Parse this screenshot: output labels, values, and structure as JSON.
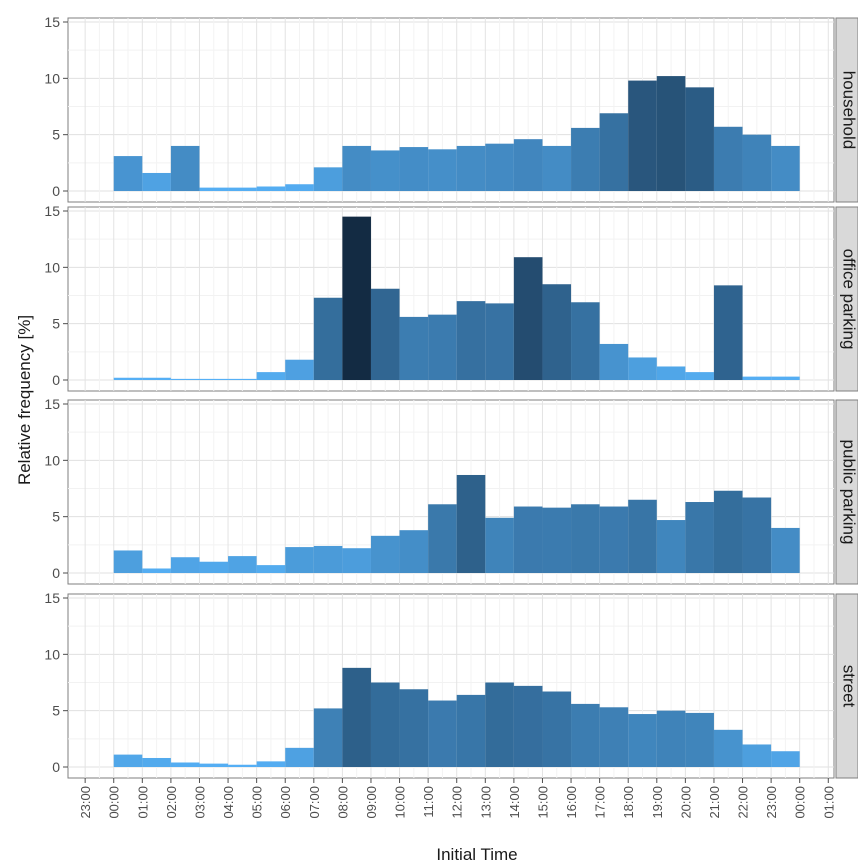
{
  "chart_data": {
    "type": "bar",
    "xlabel": "Initial Time",
    "ylabel": "Relative frequency [%]",
    "ylim": [
      0,
      15
    ],
    "yticks": [
      0,
      5,
      10,
      15
    ],
    "xticks": [
      "23:00",
      "00:00",
      "01:00",
      "02:00",
      "03:00",
      "04:00",
      "05:00",
      "06:00",
      "07:00",
      "08:00",
      "09:00",
      "10:00",
      "11:00",
      "12:00",
      "13:00",
      "14:00",
      "15:00",
      "16:00",
      "17:00",
      "18:00",
      "19:00",
      "20:00",
      "21:00",
      "22:00",
      "23:00",
      "00:00",
      "01:00"
    ],
    "bin_start_hours": [
      0,
      1,
      2,
      3,
      4,
      5,
      6,
      7,
      8,
      9,
      10,
      11,
      12,
      13,
      14,
      15,
      16,
      17,
      18,
      19,
      20,
      21,
      22,
      23
    ],
    "color_low": "#56b1f7",
    "color_high": "#132b43",
    "grid": true,
    "panels": [
      {
        "name": "household",
        "values": [
          3.1,
          1.6,
          4.0,
          0.3,
          0.3,
          0.4,
          0.6,
          2.1,
          4.0,
          3.6,
          3.9,
          3.7,
          4.0,
          4.2,
          4.6,
          4.0,
          5.6,
          6.9,
          9.8,
          10.2,
          9.2,
          5.7,
          5.0,
          4.0
        ]
      },
      {
        "name": "office parking",
        "values": [
          0.2,
          0.2,
          0.1,
          0.1,
          0.1,
          0.7,
          1.8,
          7.3,
          14.5,
          8.1,
          5.6,
          5.8,
          7.0,
          6.8,
          10.9,
          8.5,
          6.9,
          3.2,
          2.0,
          1.2,
          0.7,
          8.4,
          0.3,
          0.3
        ]
      },
      {
        "name": "public parking",
        "values": [
          2.0,
          0.4,
          1.4,
          1.0,
          1.5,
          0.7,
          2.3,
          2.4,
          2.2,
          3.3,
          3.8,
          6.1,
          8.7,
          4.9,
          5.9,
          5.8,
          6.1,
          5.9,
          6.5,
          4.7,
          6.3,
          7.3,
          6.7,
          4.0
        ]
      },
      {
        "name": "street",
        "values": [
          1.1,
          0.8,
          0.4,
          0.3,
          0.2,
          0.5,
          1.7,
          5.2,
          8.8,
          7.5,
          6.9,
          5.9,
          6.4,
          7.5,
          7.2,
          6.7,
          5.6,
          5.3,
          4.7,
          5.0,
          4.8,
          3.3,
          2.0,
          1.4
        ]
      }
    ]
  }
}
